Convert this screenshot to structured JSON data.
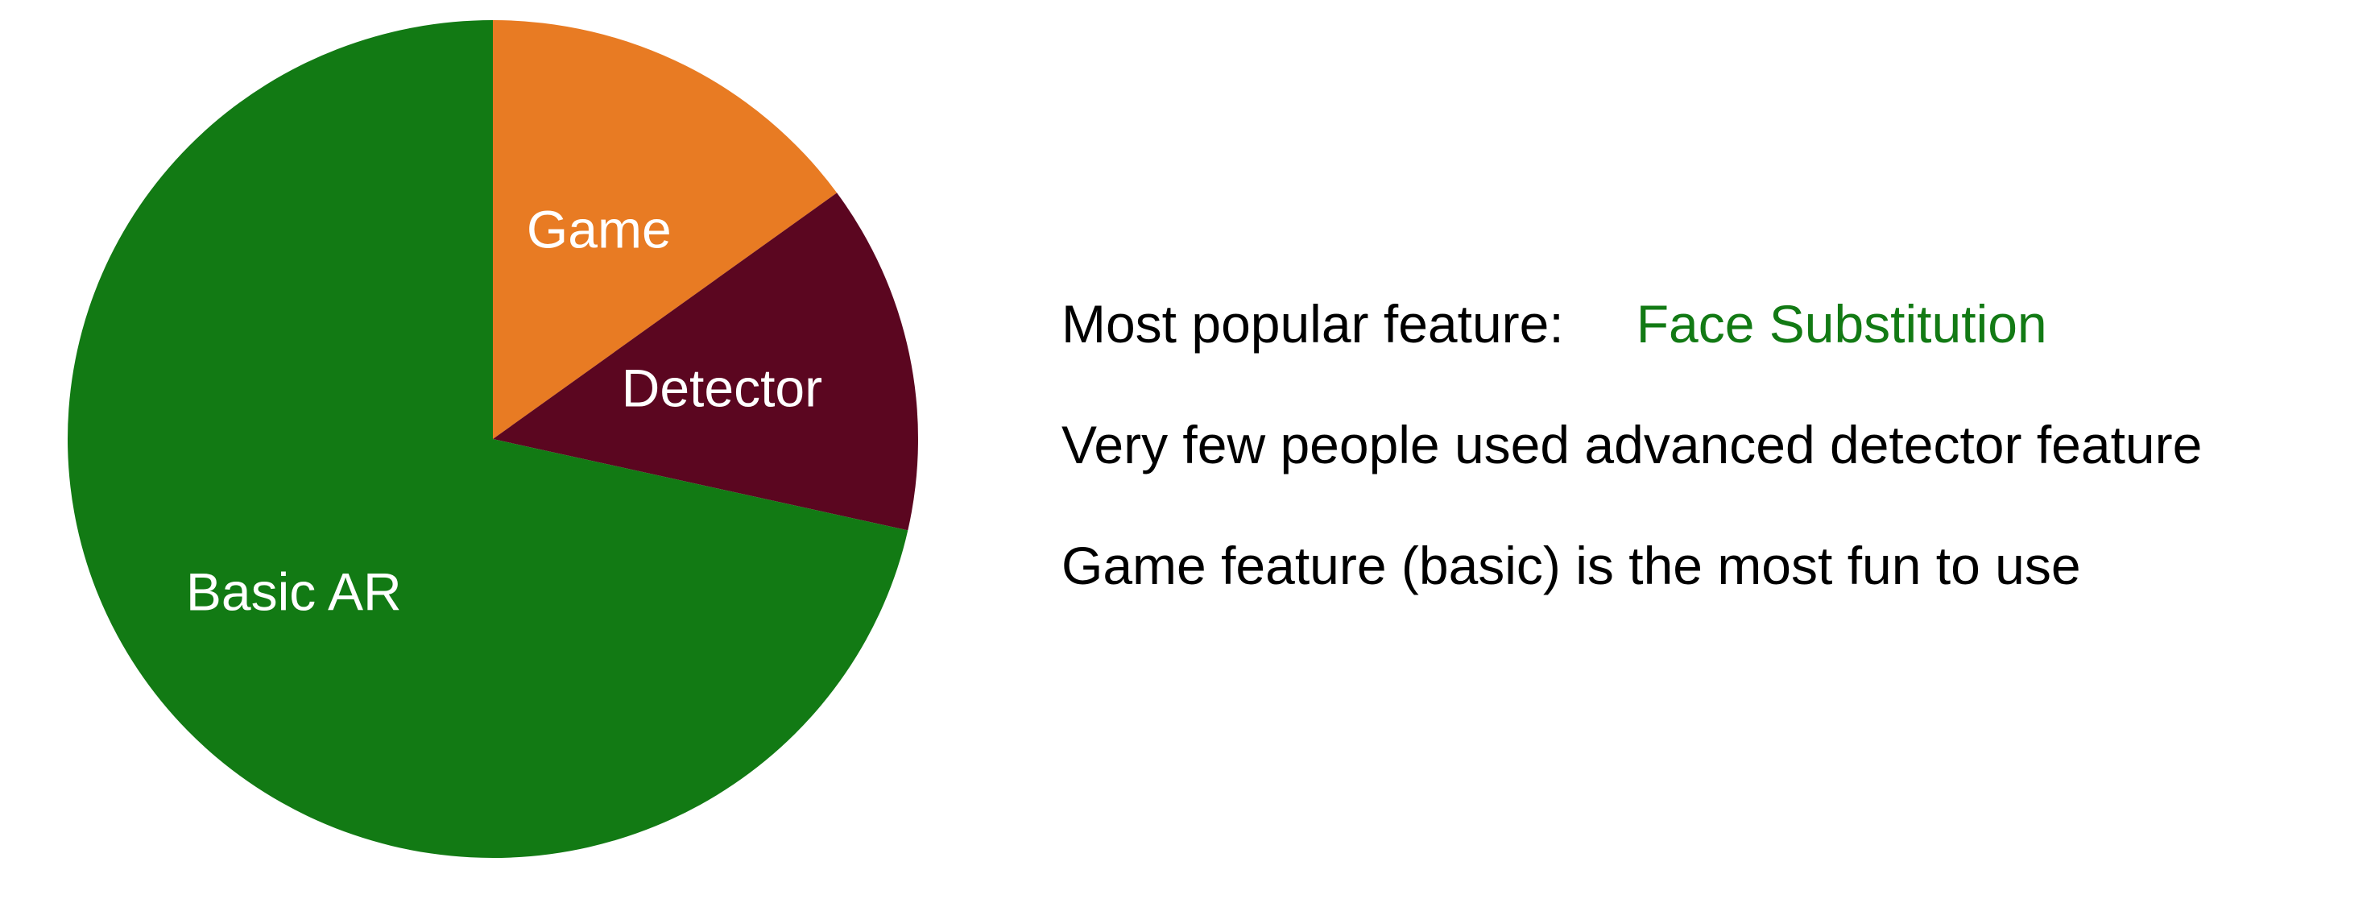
{
  "chart_data": {
    "type": "pie",
    "title": "",
    "slices": [
      {
        "label": "Game",
        "value": 15,
        "color": "#e87b23"
      },
      {
        "label": "Detector",
        "value": 13.5,
        "color": "#5b0620"
      },
      {
        "label": "Basic AR",
        "value": 71.5,
        "color": "#127a14"
      }
    ],
    "legend": "none",
    "start_angle_deg": 0,
    "direction": "clockwise"
  },
  "notes": {
    "popular_label": "Most popular feature:",
    "popular_value": "Face Substitution",
    "popular_value_color": "#127a14",
    "detector_note": "Very few people used advanced detector feature",
    "game_note": "Game feature (basic) is the most fun to use"
  }
}
